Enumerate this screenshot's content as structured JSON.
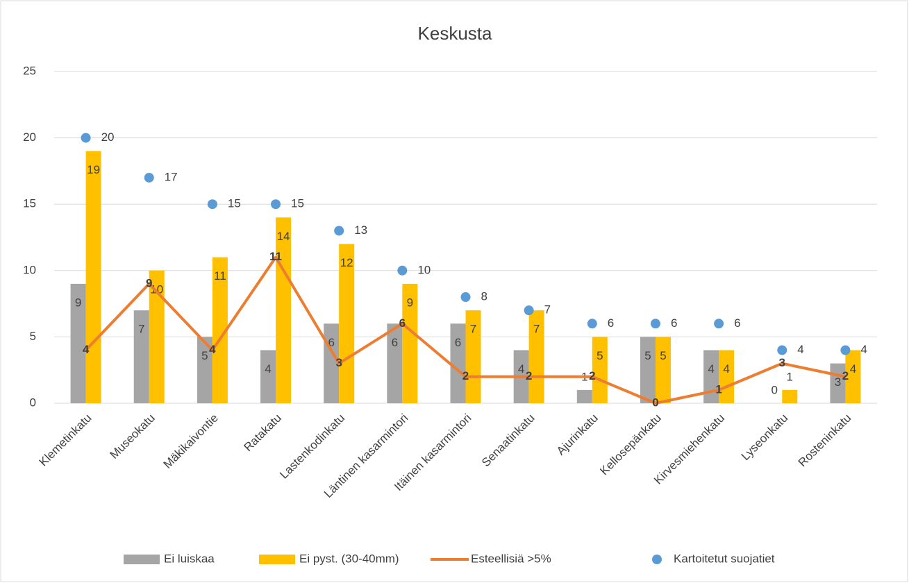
{
  "chart_data": {
    "type": "combo",
    "title": "Keskusta",
    "categories": [
      "Klemetinkatu",
      "Museokatu",
      "Mäkikaivontie",
      "Ratakatu",
      "Lastenkodinkatu",
      "Läntinen kasarmintori",
      "Itäinen kasarmintori",
      "Senaatinkatu",
      "Ajurinkatu",
      "Kellosepänkatu",
      "Kirvesmiehenkatu",
      "Lyseonkatu",
      "Rosteninkatu"
    ],
    "series": [
      {
        "name": "Ei luiskaa",
        "type": "bar",
        "color": "#a5a5a5",
        "values": [
          9,
          7,
          5,
          4,
          6,
          6,
          6,
          4,
          1,
          5,
          4,
          0,
          3
        ]
      },
      {
        "name": "Ei pyst. (30-40mm)",
        "type": "bar",
        "color": "#ffc000",
        "values": [
          19,
          10,
          11,
          14,
          12,
          9,
          7,
          7,
          5,
          5,
          4,
          1,
          4
        ]
      },
      {
        "name": "Esteellisiä >5%",
        "type": "line",
        "color": "#ed7d31",
        "values": [
          4,
          9,
          4,
          11,
          3,
          6,
          2,
          2,
          2,
          0,
          1,
          3,
          2
        ]
      },
      {
        "name": "Kartoitetut suojatiet",
        "type": "scatter",
        "color": "#5b9bd5",
        "values": [
          20,
          17,
          15,
          15,
          13,
          10,
          8,
          7,
          6,
          6,
          6,
          4,
          4
        ]
      }
    ],
    "ylim": [
      0,
      25
    ],
    "yticks": [
      0,
      5,
      10,
      15,
      20,
      25
    ],
    "grid": true,
    "legend": "bottom"
  }
}
